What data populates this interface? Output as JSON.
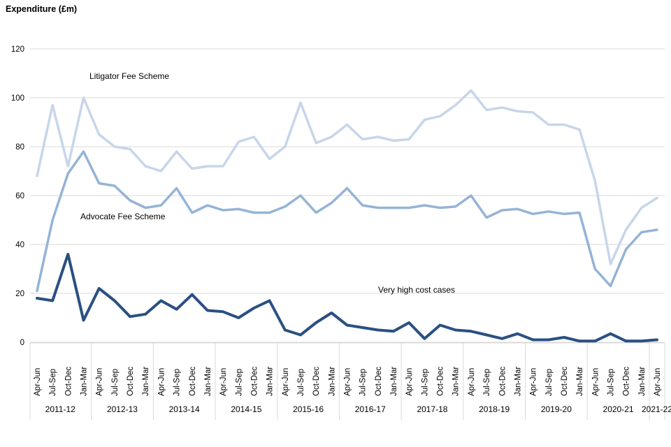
{
  "chart_data": {
    "type": "line",
    "title": "Expenditure (£m)",
    "ylabel": "Expenditure (£m)",
    "xlabel": "",
    "ylim": [
      0,
      120
    ],
    "y_ticks": [
      0,
      20,
      40,
      60,
      80,
      100,
      120
    ],
    "grid": true,
    "legend": "inline-labels",
    "x_groups": [
      {
        "year": "2011-12",
        "quarters": [
          "Apr-Jun",
          "Jul-Sep",
          "Oct-Dec",
          "Jan-Mar"
        ]
      },
      {
        "year": "2012-13",
        "quarters": [
          "Apr-Jun",
          "Jul-Sep",
          "Oct-Dec",
          "Jan-Mar"
        ]
      },
      {
        "year": "2013-14",
        "quarters": [
          "Apr-Jun",
          "Jul-Sep",
          "Oct-Dec",
          "Jan-Mar"
        ]
      },
      {
        "year": "2014-15",
        "quarters": [
          "Apr-Jun",
          "Jul-Sep",
          "Oct-Dec",
          "Jan-Mar"
        ]
      },
      {
        "year": "2015-16",
        "quarters": [
          "Apr-Jun",
          "Jul-Sep",
          "Oct-Dec",
          "Jan-Mar"
        ]
      },
      {
        "year": "2016-17",
        "quarters": [
          "Apr-Jun",
          "Jul-Sep",
          "Oct-Dec",
          "Jan-Mar"
        ]
      },
      {
        "year": "2017-18",
        "quarters": [
          "Apr-Jun",
          "Jul-Sep",
          "Oct-Dec",
          "Jan-Mar"
        ]
      },
      {
        "year": "2018-19",
        "quarters": [
          "Apr-Jun",
          "Jul-Sep",
          "Oct-Dec",
          "Jan-Mar"
        ]
      },
      {
        "year": "2019-20",
        "quarters": [
          "Apr-Jun",
          "Jul-Sep",
          "Oct-Dec",
          "Jan-Mar"
        ]
      },
      {
        "year": "2020-21",
        "quarters": [
          "Apr-Jun",
          "Jul-Sep",
          "Oct-Dec",
          "Jan-Mar"
        ]
      },
      {
        "year": "2021-22",
        "quarters": [
          "Apr-Jun"
        ]
      }
    ],
    "series": [
      {
        "name": "Litigator Fee Scheme",
        "color": "#c7d6e9",
        "values": [
          68,
          97,
          72,
          100,
          85,
          80,
          79,
          72,
          70,
          78,
          71,
          72,
          72,
          82,
          84,
          75,
          80,
          98,
          81.5,
          84,
          89,
          83,
          84,
          82.5,
          83,
          91,
          92.5,
          97,
          103,
          95,
          96,
          94.5,
          94,
          89,
          89,
          87,
          66,
          32,
          46,
          55,
          59
        ]
      },
      {
        "name": "Advocate Fee Scheme",
        "color": "#95b3d7",
        "values": [
          21,
          50,
          69,
          78,
          65,
          64,
          58,
          55,
          56,
          63,
          53,
          56,
          54,
          54.5,
          53,
          53,
          55.5,
          60,
          53,
          57,
          63,
          56,
          55,
          55,
          55,
          56,
          55,
          55.5,
          60,
          51,
          54,
          54.5,
          52.5,
          53.5,
          52.5,
          53,
          30,
          23,
          38,
          45,
          46
        ]
      },
      {
        "name": "Very high cost cases",
        "color": "#2a5082",
        "values": [
          18,
          17,
          36,
          9,
          22,
          17,
          10.5,
          11.5,
          17,
          13.5,
          19.5,
          13,
          12.5,
          10,
          14,
          17,
          5,
          3,
          8,
          12,
          7,
          6,
          5,
          4.5,
          8,
          1.5,
          7,
          5,
          4.5,
          3,
          1.5,
          3.5,
          1,
          1,
          2,
          0.5,
          0.5,
          3.5,
          0.5,
          0.5,
          1
        ]
      }
    ],
    "colors": {
      "gridline": "#d9d9d9",
      "axis": "#d9d9d9",
      "text": "#000000"
    }
  }
}
